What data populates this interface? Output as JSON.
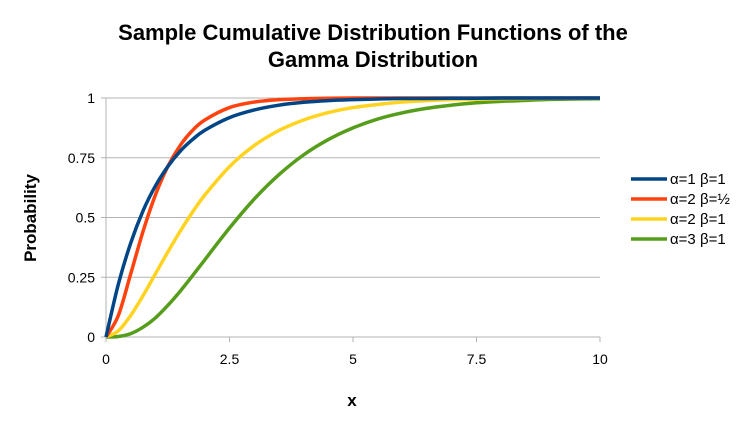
{
  "chart_data": {
    "type": "line",
    "title_lines": [
      "Sample Cumulative Distribution Functions of the",
      "Gamma Distribution"
    ],
    "xlabel": "x",
    "ylabel": "Probability",
    "xlim": [
      0,
      10
    ],
    "ylim": [
      0,
      1
    ],
    "x_ticks": [
      0,
      2.5,
      5,
      7.5,
      10
    ],
    "x_tick_labels": [
      "0",
      "2.5",
      "5",
      "7.5",
      "10"
    ],
    "y_ticks": [
      0,
      0.25,
      0.5,
      0.75,
      1
    ],
    "y_tick_labels": [
      "0",
      "0.25",
      "0.5",
      "0.75",
      "1"
    ],
    "grid": "horizontal",
    "legend_position": "right",
    "x": [
      0,
      0.25,
      0.5,
      0.75,
      1,
      1.25,
      1.5,
      1.75,
      2,
      2.5,
      3,
      3.5,
      4,
      4.5,
      5,
      5.5,
      6,
      6.5,
      7,
      7.5,
      8,
      8.5,
      9,
      9.5,
      10
    ],
    "series": [
      {
        "name": "α=1 β=1",
        "color": "#004586",
        "values": [
          0,
          0.221,
          0.393,
          0.528,
          0.632,
          0.713,
          0.777,
          0.826,
          0.865,
          0.918,
          0.95,
          0.97,
          0.982,
          0.989,
          0.993,
          0.996,
          0.998,
          0.998,
          0.999,
          0.999,
          1,
          1,
          1,
          1,
          1
        ]
      },
      {
        "name": "α=2 β=½",
        "color": "#ff420e",
        "values": [
          0,
          0.09,
          0.264,
          0.442,
          0.594,
          0.713,
          0.801,
          0.864,
          0.908,
          0.96,
          0.983,
          0.993,
          0.997,
          0.999,
          1,
          1,
          1,
          1,
          1,
          1,
          1,
          1,
          1,
          1,
          1
        ]
      },
      {
        "name": "α=2 β=1",
        "color": "#ffd320",
        "values": [
          0,
          0.026,
          0.09,
          0.173,
          0.264,
          0.355,
          0.442,
          0.522,
          0.594,
          0.713,
          0.801,
          0.864,
          0.908,
          0.939,
          0.96,
          0.973,
          0.983,
          0.989,
          0.993,
          0.995,
          0.997,
          0.998,
          0.999,
          0.999,
          1
        ]
      },
      {
        "name": "α=3 β=1",
        "color": "#579d1c",
        "values": [
          0,
          0.002,
          0.014,
          0.041,
          0.08,
          0.132,
          0.191,
          0.256,
          0.323,
          0.456,
          0.577,
          0.679,
          0.762,
          0.826,
          0.875,
          0.912,
          0.938,
          0.957,
          0.97,
          0.98,
          0.986,
          0.99,
          0.994,
          0.996,
          0.997
        ]
      }
    ]
  }
}
